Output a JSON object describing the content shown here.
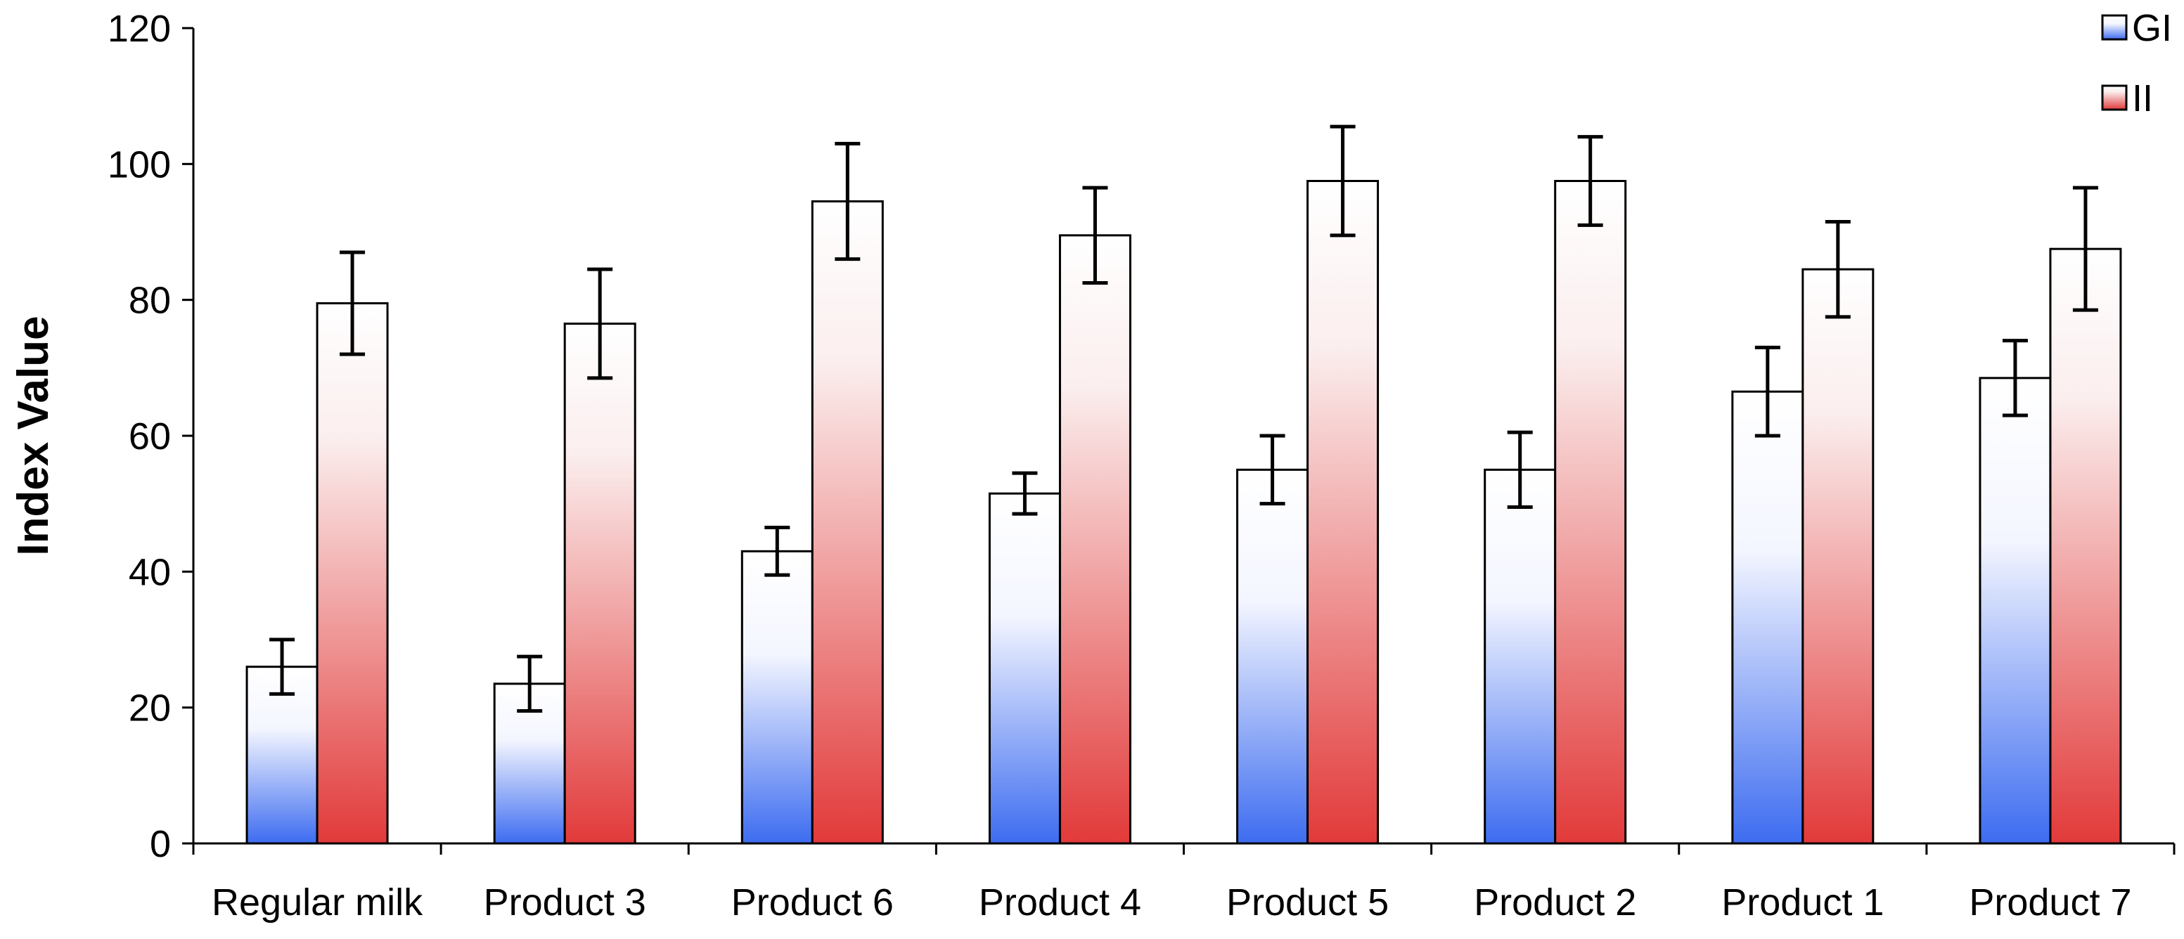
{
  "chart_data": {
    "type": "bar",
    "title": "",
    "xlabel": "",
    "ylabel": "Index Value",
    "ylim": [
      0,
      120
    ],
    "yticks": [
      "0",
      "20",
      "40",
      "60",
      "80",
      "100",
      "120"
    ],
    "categories": [
      "Regular milk",
      "Product 3",
      "Product 6",
      "Product 4",
      "Product 5",
      "Product 2",
      "Product 1",
      "Product 7"
    ],
    "series": [
      {
        "name": "GI",
        "values": [
          26,
          23.5,
          43,
          51.5,
          55,
          55,
          66.5,
          68.5
        ],
        "error": [
          4,
          4,
          3.5,
          3,
          5,
          5.5,
          6.5,
          5.5
        ],
        "color_top": "#ffffff",
        "color_bottom": "#3d6cf0"
      },
      {
        "name": "II",
        "values": [
          79.5,
          76.5,
          94.5,
          89.5,
          97.5,
          97.5,
          84.5,
          87.5
        ],
        "error": [
          7.5,
          8,
          8.5,
          7,
          8,
          6.5,
          7,
          9
        ],
        "color_top": "#ffffff",
        "color_bottom": "#e23a3a"
      }
    ],
    "grid": false,
    "legend_position": "top-right"
  }
}
